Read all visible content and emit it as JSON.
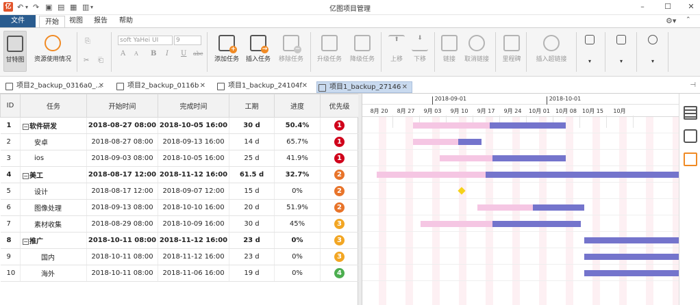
{
  "window": {
    "title": "亿图项目管理",
    "controls": {
      "minimize": "–",
      "maximize": "☐",
      "close": "✕"
    }
  },
  "menu": {
    "file": "文件",
    "tabs": [
      "开始",
      "视图",
      "报告",
      "帮助"
    ],
    "active_tab": "开始",
    "settings_icon": "gear-icon"
  },
  "ribbon": {
    "gantt": "甘特图",
    "resource_usage": "资源使用情况",
    "font_name": "soft YaHei UI",
    "font_size": "9",
    "font_grow": "A",
    "font_shrink": "A",
    "bold": "B",
    "italic": "I",
    "underline": "U",
    "strike": "abc",
    "add_task": "添加任务",
    "insert_task": "插入任务",
    "remove_task": "移除任务",
    "upgrade_task": "升级任务",
    "downgrade_task": "降级任务",
    "move_up": "上移",
    "move_down": "下移",
    "link": "链接",
    "unlink": "取消链接",
    "milestone": "里程碑",
    "insert_hyperlink": "插入超链接"
  },
  "doc_tabs": [
    {
      "label": "项目2_backup_0316a0_..."
    },
    {
      "label": "项目2_backup_0116b"
    },
    {
      "label": "项目1_backup_24104f"
    },
    {
      "label": "项目1_backup_27146"
    }
  ],
  "grid": {
    "headers": [
      "ID",
      "任务",
      "开始时间",
      "完成时间",
      "工期",
      "进度",
      "优先级"
    ],
    "rows": [
      {
        "id": "1",
        "task": "软件研发",
        "start": "2018-08-27 08:00",
        "finish": "2018-10-05 16:00",
        "duration": "30 d",
        "progress": "50.4%",
        "priority": "1",
        "summary": true
      },
      {
        "id": "2",
        "task": "安卓",
        "start": "2018-08-27 08:00",
        "finish": "2018-09-13 16:00",
        "duration": "14 d",
        "progress": "65.7%",
        "priority": "1",
        "summary": false
      },
      {
        "id": "3",
        "task": "ios",
        "start": "2018-09-03 08:00",
        "finish": "2018-10-05 16:00",
        "duration": "25 d",
        "progress": "41.9%",
        "priority": "1",
        "summary": false
      },
      {
        "id": "4",
        "task": "美工",
        "start": "2018-08-17 12:00",
        "finish": "2018-11-12 16:00",
        "duration": "61.5 d",
        "progress": "32.7%",
        "priority": "2",
        "summary": true
      },
      {
        "id": "5",
        "task": "设计",
        "start": "2018-08-17 12:00",
        "finish": "2018-09-07 12:00",
        "duration": "15 d",
        "progress": "0%",
        "priority": "2",
        "summary": false
      },
      {
        "id": "6",
        "task": "图像处理",
        "start": "2018-09-13 08:00",
        "finish": "2018-10-10 16:00",
        "duration": "20 d",
        "progress": "51.9%",
        "priority": "2",
        "summary": false
      },
      {
        "id": "7",
        "task": "素材收集",
        "start": "2018-08-29 08:00",
        "finish": "2018-10-09 16:00",
        "duration": "30 d",
        "progress": "45%",
        "priority": "3",
        "summary": false
      },
      {
        "id": "8",
        "task": "推广",
        "start": "2018-10-11 08:00",
        "finish": "2018-11-12 16:00",
        "duration": "23 d",
        "progress": "0%",
        "priority": "3",
        "summary": true
      },
      {
        "id": "9",
        "task": "国内",
        "start": "2018-10-11 08:00",
        "finish": "2018-11-12 16:00",
        "duration": "23 d",
        "progress": "0%",
        "priority": "3",
        "summary": false
      },
      {
        "id": "10",
        "task": "海外",
        "start": "2018-10-11 08:00",
        "finish": "2018-11-06 16:00",
        "duration": "19 d",
        "progress": "0%",
        "priority": "4",
        "summary": false
      }
    ]
  },
  "gantt": {
    "months": [
      "2018-09-01",
      "2018-10-01"
    ],
    "weeks": [
      "8月 20",
      "8月 27",
      "9月 03",
      "9月 10",
      "9月 17",
      "9月 24",
      "10月 01",
      "10月 08",
      "10月 15",
      "10月"
    ]
  },
  "colors": {
    "priority": {
      "1": "#d0021b",
      "2": "#e8742a",
      "3": "#f2a623",
      "4": "#4cae4f"
    },
    "progress_bar": "#7474cc",
    "remaining_bar": "#f5c6e3",
    "milestone": "#f5d21a"
  }
}
